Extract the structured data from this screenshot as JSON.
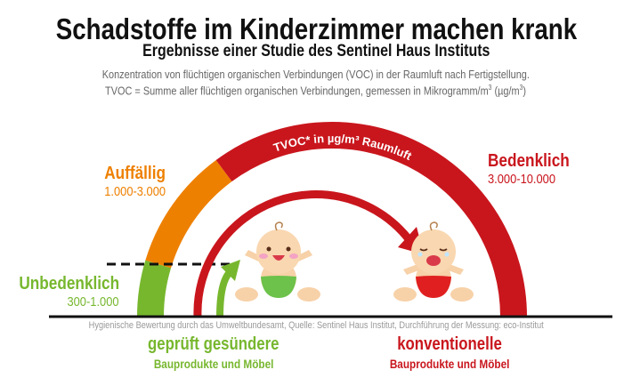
{
  "header": {
    "title": "Schadstoffe im Kinderzimmer machen krank",
    "subtitle": "Ergebnisse einer Studie des Sentinel Haus Instituts",
    "description_line1": "Konzentration von flüchtigen organischen Verbindungen (VOC) in der Raumluft nach Fertigstellung.",
    "description_line2_prefix": "TVOC = Summe aller flüchtigen organischen Verbindungen, gemessen in Mikrogramm/m",
    "description_line2_sup": "3",
    "description_line2_mid": " (µg/m",
    "description_line2_sup2": "3",
    "description_line2_end": ")"
  },
  "gauge": {
    "arc_label": "TVOC* in µg/m³ Raumluft",
    "levels": [
      {
        "label": "Unbedenklich",
        "range": "300-1.000",
        "color": "#77b72e"
      },
      {
        "label": "Auffällig",
        "range": "1.000-3.000",
        "color": "#ee8000"
      },
      {
        "label": "Bedenklich",
        "range": "3.000-10.000",
        "color": "#c9161d"
      }
    ]
  },
  "footer": "Hygienische Bewertung durch das Umweltbundesamt, Quelle: Sentinel Haus Institut, Durchführung der Messung: eco-Institut",
  "groups": [
    {
      "title": "geprüft gesündere",
      "subtitle": "Bauprodukte und Möbel",
      "color": "#77b72e",
      "baby": "happy-baby",
      "diaper_color": "#6cc24a"
    },
    {
      "title": "konventionelle",
      "subtitle": "Bauprodukte und Möbel",
      "color": "#c9161d",
      "baby": "crying-baby",
      "diaper_color": "#e02020"
    }
  ]
}
